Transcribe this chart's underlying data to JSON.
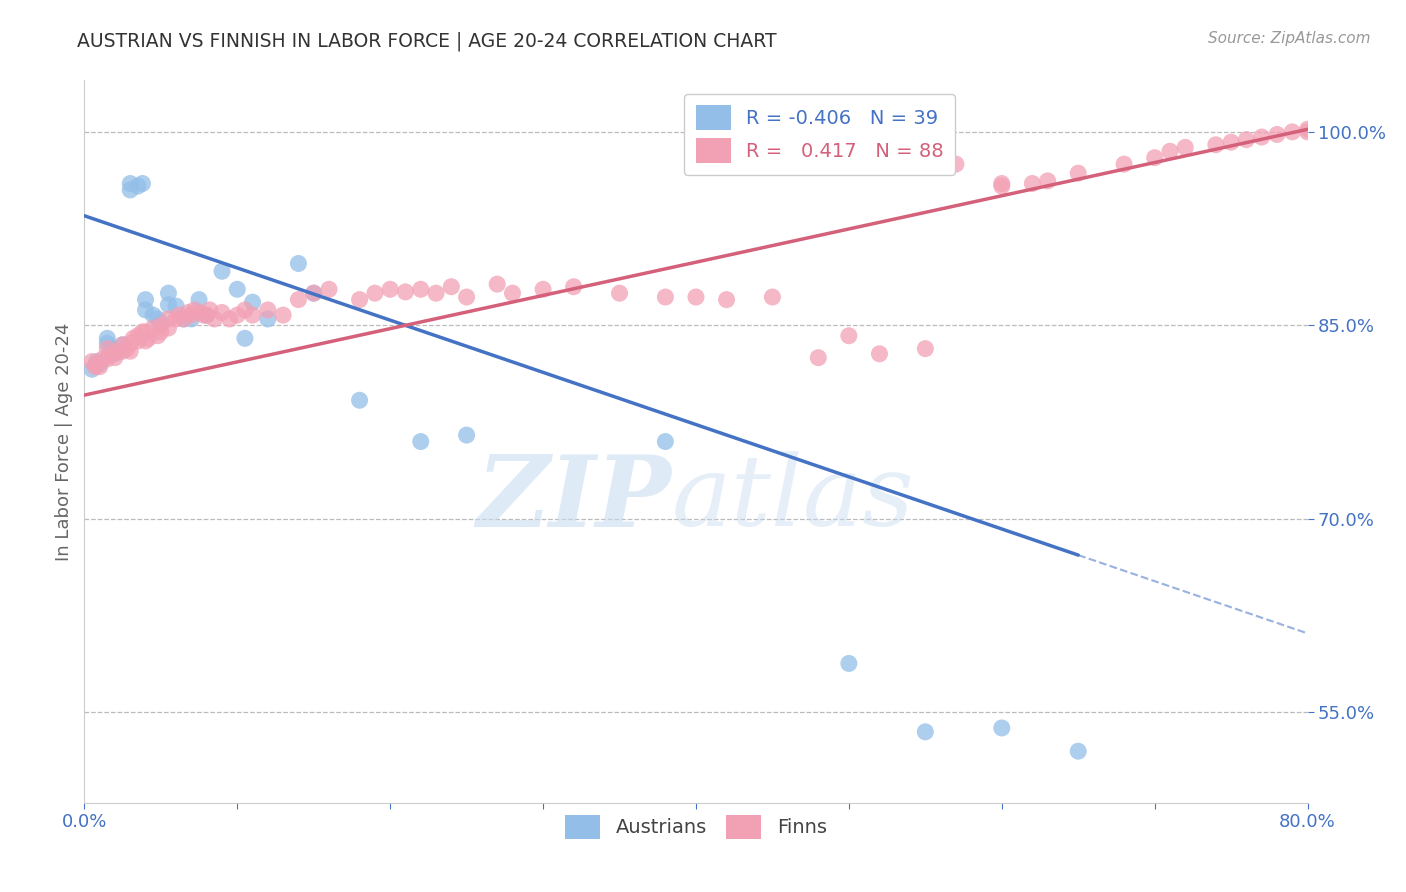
{
  "title": "AUSTRIAN VS FINNISH IN LABOR FORCE | AGE 20-24 CORRELATION CHART",
  "source": "Source: ZipAtlas.com",
  "ylabel": "In Labor Force | Age 20-24",
  "watermark_zip": "ZIP",
  "watermark_atlas": "atlas",
  "legend_austrians": "Austrians",
  "legend_finns": "Finns",
  "r_austrians": -0.406,
  "n_austrians": 39,
  "r_finns": 0.417,
  "n_finns": 88,
  "xmin": 0.0,
  "xmax": 0.8,
  "ymin": 0.48,
  "ymax": 1.04,
  "ytick_positions": [
    0.55,
    0.7,
    0.85,
    1.0
  ],
  "ytick_labels": [
    "55.0%",
    "70.0%",
    "85.0%",
    "100.0%"
  ],
  "xtick_positions": [
    0.0,
    0.1,
    0.2,
    0.3,
    0.4,
    0.5,
    0.6,
    0.7,
    0.8
  ],
  "xtick_labels": [
    "0.0%",
    "",
    "",
    "",
    "",
    "",
    "",
    "",
    "80.0%"
  ],
  "color_austrians": "#92BEE8",
  "color_finns": "#F2A0B4",
  "line_color_austrians": "#4472C4",
  "line_color_finns": "#D4607A",
  "background_color": "#FFFFFF",
  "grid_color": "#CCCCCC",
  "aus_line_x0": 0.0,
  "aus_line_y0": 0.935,
  "aus_line_x1": 0.65,
  "aus_line_y1": 0.672,
  "fin_line_x0": 0.0,
  "fin_line_y0": 0.796,
  "fin_line_x1": 0.8,
  "fin_line_y1": 1.002,
  "aus_scatter_x": [
    0.005,
    0.008,
    0.01,
    0.015,
    0.015,
    0.018,
    0.02,
    0.025,
    0.03,
    0.03,
    0.035,
    0.038,
    0.04,
    0.04,
    0.045,
    0.048,
    0.05,
    0.055,
    0.055,
    0.06,
    0.065,
    0.07,
    0.075,
    0.08,
    0.09,
    0.1,
    0.105,
    0.11,
    0.12,
    0.14,
    0.15,
    0.18,
    0.22,
    0.25,
    0.38,
    0.5,
    0.55,
    0.6,
    0.65
  ],
  "aus_scatter_y": [
    0.816,
    0.822,
    0.82,
    0.84,
    0.836,
    0.832,
    0.828,
    0.835,
    0.96,
    0.955,
    0.958,
    0.96,
    0.87,
    0.862,
    0.858,
    0.855,
    0.852,
    0.875,
    0.866,
    0.865,
    0.855,
    0.855,
    0.87,
    0.858,
    0.892,
    0.878,
    0.84,
    0.868,
    0.855,
    0.898,
    0.875,
    0.792,
    0.76,
    0.765,
    0.76,
    0.588,
    0.535,
    0.538,
    0.52
  ],
  "fin_scatter_x": [
    0.005,
    0.007,
    0.008,
    0.01,
    0.012,
    0.015,
    0.015,
    0.018,
    0.02,
    0.022,
    0.025,
    0.025,
    0.028,
    0.03,
    0.03,
    0.032,
    0.035,
    0.035,
    0.038,
    0.04,
    0.04,
    0.042,
    0.045,
    0.048,
    0.05,
    0.05,
    0.055,
    0.055,
    0.06,
    0.062,
    0.065,
    0.068,
    0.07,
    0.072,
    0.075,
    0.078,
    0.08,
    0.082,
    0.085,
    0.09,
    0.095,
    0.1,
    0.105,
    0.11,
    0.12,
    0.13,
    0.14,
    0.15,
    0.16,
    0.18,
    0.19,
    0.2,
    0.21,
    0.22,
    0.23,
    0.24,
    0.25,
    0.27,
    0.28,
    0.3,
    0.32,
    0.35,
    0.38,
    0.4,
    0.42,
    0.45,
    0.48,
    0.5,
    0.52,
    0.55,
    0.57,
    0.6,
    0.6,
    0.62,
    0.63,
    0.65,
    0.68,
    0.7,
    0.71,
    0.72,
    0.74,
    0.75,
    0.76,
    0.77,
    0.78,
    0.79,
    0.8,
    0.8
  ],
  "fin_scatter_y": [
    0.822,
    0.818,
    0.82,
    0.818,
    0.824,
    0.824,
    0.832,
    0.828,
    0.825,
    0.83,
    0.83,
    0.835,
    0.832,
    0.836,
    0.83,
    0.84,
    0.842,
    0.838,
    0.845,
    0.845,
    0.838,
    0.84,
    0.848,
    0.842,
    0.85,
    0.845,
    0.848,
    0.855,
    0.855,
    0.858,
    0.855,
    0.86,
    0.858,
    0.862,
    0.86,
    0.858,
    0.858,
    0.862,
    0.855,
    0.86,
    0.855,
    0.858,
    0.862,
    0.858,
    0.862,
    0.858,
    0.87,
    0.875,
    0.878,
    0.87,
    0.875,
    0.878,
    0.876,
    0.878,
    0.875,
    0.88,
    0.872,
    0.882,
    0.875,
    0.878,
    0.88,
    0.875,
    0.872,
    0.872,
    0.87,
    0.872,
    0.825,
    0.842,
    0.828,
    0.832,
    0.975,
    0.96,
    0.958,
    0.96,
    0.962,
    0.968,
    0.975,
    0.98,
    0.985,
    0.988,
    0.99,
    0.992,
    0.994,
    0.996,
    0.998,
    1.0,
    1.0,
    1.002
  ]
}
